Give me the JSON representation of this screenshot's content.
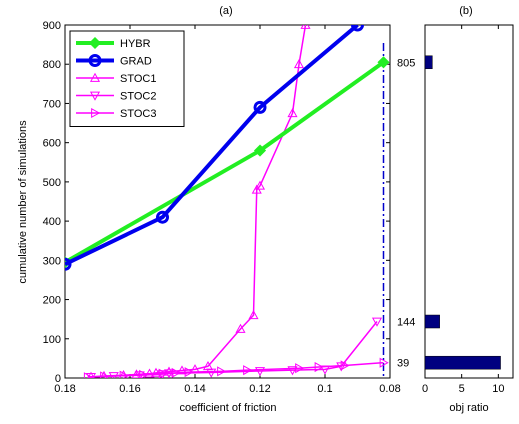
{
  "chart_data": [
    {
      "panel_label": "(a)",
      "type": "line",
      "xlabel": "coefficient of friction",
      "ylabel": "cumulative number of simulations",
      "xlim": [
        0.08,
        0.18
      ],
      "x_reversed": true,
      "ylim": [
        0,
        900
      ],
      "xticks": [
        0.18,
        0.16,
        0.14,
        0.12,
        0.1,
        0.08
      ],
      "xtick_labels": [
        "0.18",
        "0.16",
        "0.14",
        "0.12",
        "0.1",
        "0.08"
      ],
      "yticks": [
        0,
        100,
        200,
        300,
        400,
        500,
        600,
        700,
        800,
        900
      ],
      "ytick_labels": [
        "0",
        "100",
        "200",
        "300",
        "400",
        "500",
        "600",
        "700",
        "800",
        "900"
      ],
      "grid": false,
      "legend_position": "top-left",
      "vertical_line": {
        "x": 0.082,
        "color": "#0000cc",
        "style": "dash-dot"
      },
      "right_labels": [
        {
          "text": "805",
          "y": 805
        },
        {
          "text": "144",
          "y": 144
        },
        {
          "text": "39",
          "y": 39
        }
      ],
      "series": [
        {
          "name": "HYBR",
          "color": "#22ee22",
          "marker": "diamond",
          "width": 4,
          "x": [
            0.18,
            0.12,
            0.082
          ],
          "y": [
            295,
            580,
            805
          ]
        },
        {
          "name": "GRAD",
          "color": "#0000ee",
          "marker": "circle",
          "width": 4,
          "x": [
            0.18,
            0.15,
            0.12,
            0.09
          ],
          "y": [
            290,
            410,
            690,
            900
          ]
        },
        {
          "name": "STOC1",
          "color": "#ff00ff",
          "marker": "triangle-up",
          "width": 1.5,
          "x": [
            0.172,
            0.168,
            0.162,
            0.158,
            0.154,
            0.152,
            0.148,
            0.144,
            0.14,
            0.136,
            0.126,
            0.122,
            0.121,
            0.12,
            0.11,
            0.108,
            0.106
          ],
          "y": [
            3,
            5,
            7,
            9,
            11,
            13,
            16,
            19,
            22,
            30,
            125,
            160,
            480,
            490,
            675,
            800,
            900
          ]
        },
        {
          "name": "STOC2",
          "color": "#ff00ff",
          "marker": "triangle-down",
          "width": 1.5,
          "x": [
            0.172,
            0.165,
            0.157,
            0.15,
            0.148,
            0.135,
            0.12,
            0.11,
            0.1,
            0.095,
            0.084
          ],
          "y": [
            3,
            5,
            7,
            10,
            12,
            14,
            18,
            20,
            22,
            30,
            144
          ]
        },
        {
          "name": "STOC3",
          "color": "#ff00ff",
          "marker": "triangle-right",
          "width": 1.5,
          "x": [
            0.173,
            0.168,
            0.162,
            0.156,
            0.15,
            0.146,
            0.142,
            0.132,
            0.124,
            0.108,
            0.102,
            0.094,
            0.082
          ],
          "y": [
            2,
            4,
            6,
            8,
            11,
            13,
            15,
            17,
            20,
            25,
            28,
            32,
            39
          ]
        }
      ]
    },
    {
      "panel_label": "(b)",
      "type": "bar",
      "orientation": "horizontal",
      "xlabel": "obj ratio",
      "xlim": [
        0,
        12
      ],
      "xticks": [
        0,
        5,
        10
      ],
      "xtick_labels": [
        "0",
        "5",
        "10"
      ],
      "ylim": [
        0,
        900
      ],
      "bar_color": "#000080",
      "bars": [
        {
          "y": 805,
          "value": 1
        },
        {
          "y": 144,
          "value": 2
        },
        {
          "y": 39,
          "value": 10.3
        }
      ]
    }
  ]
}
